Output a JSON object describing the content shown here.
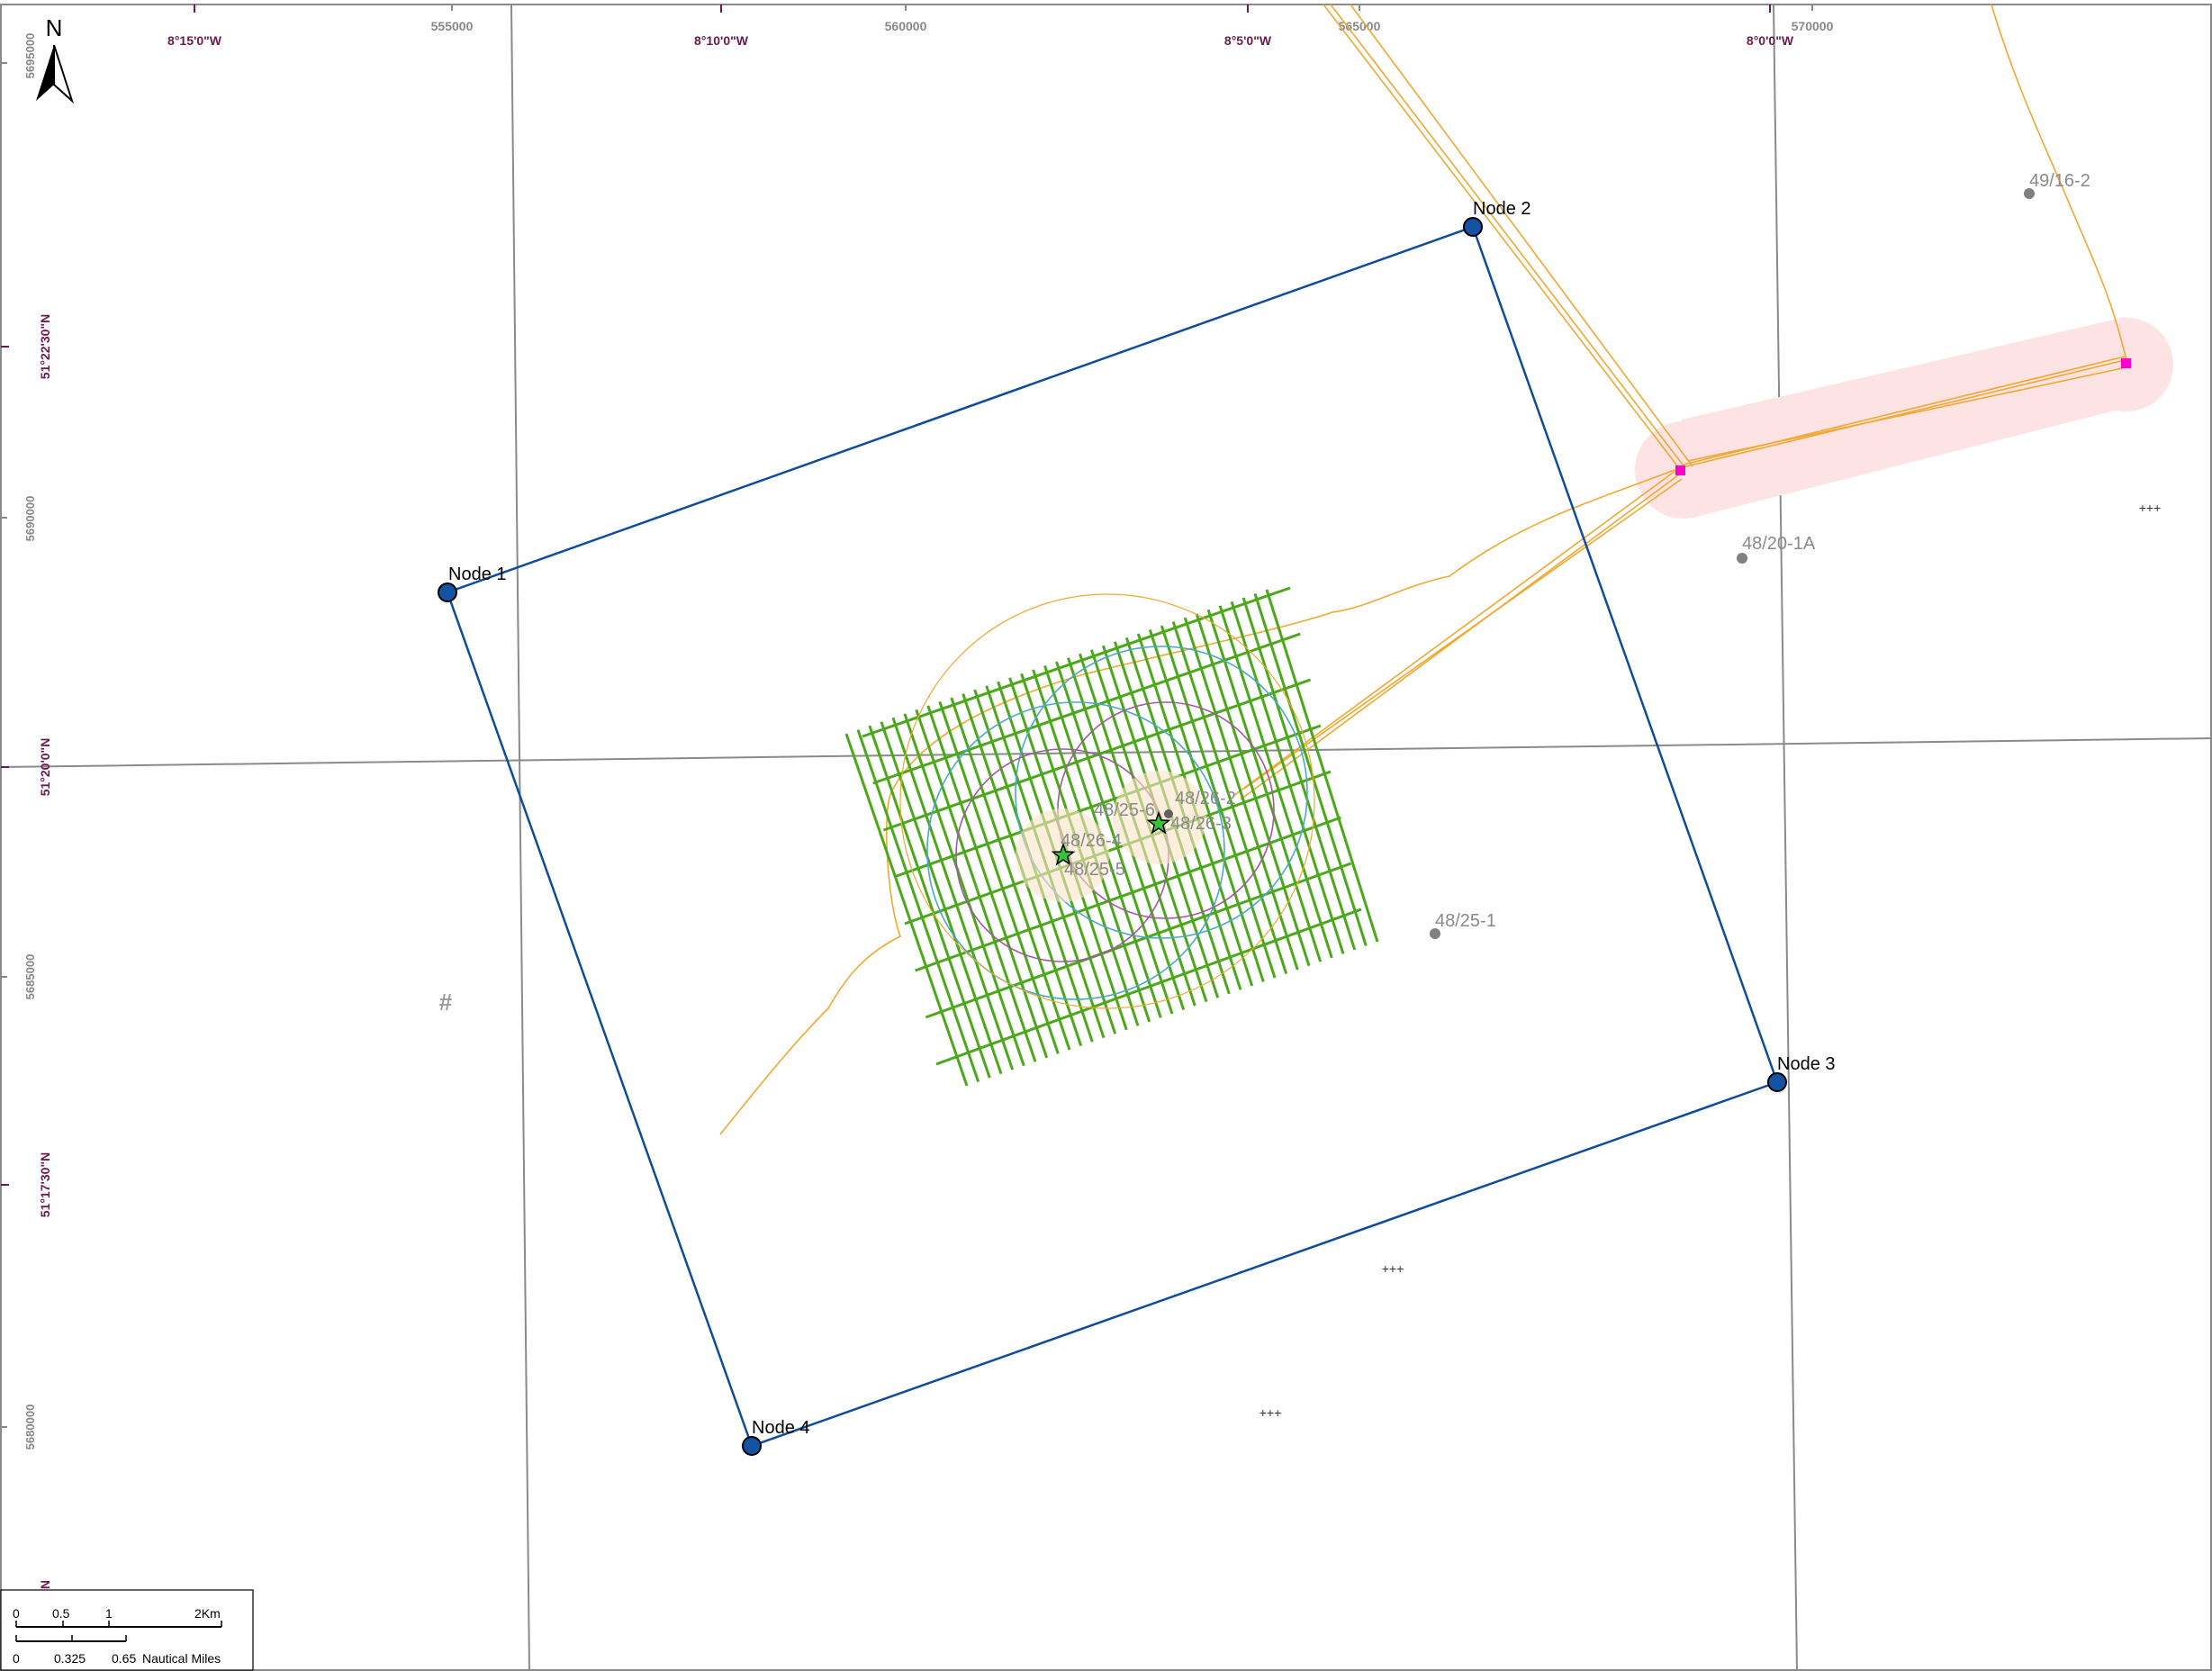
{
  "north_arrow": {
    "label": "N"
  },
  "grid": {
    "easting_labels": [
      "555000",
      "560000",
      "565000",
      "570000"
    ],
    "northing_labels": [
      "5695000",
      "5690000",
      "5685000",
      "5680000"
    ],
    "longitude_labels": [
      "8°15'0\"W",
      "8°10'0\"W",
      "8°5'0\"W",
      "8°0'0\"W"
    ],
    "latitude_labels": [
      "51°22'30\"N",
      "51°20'0\"N",
      "51°17'30\"N",
      "N"
    ]
  },
  "nodes": [
    {
      "label": "Node 1"
    },
    {
      "label": "Node 2"
    },
    {
      "label": "Node 3"
    },
    {
      "label": "Node 4"
    }
  ],
  "wells": [
    {
      "label": "49/16-2"
    },
    {
      "label": "48/20-1A"
    },
    {
      "label": "48/25-1"
    },
    {
      "label": "48/26-2"
    },
    {
      "label": "48/26-3"
    },
    {
      "label": "48/25-6"
    },
    {
      "label": "48/26-4"
    },
    {
      "label": "48/25-5"
    }
  ],
  "symbols": {
    "hash": "#",
    "wreck_marker": "+++"
  },
  "scale_bar": {
    "km_labels": [
      "0",
      "0.5",
      "1",
      "2Km"
    ],
    "nm_labels": [
      "0",
      "0.325",
      "0.65"
    ],
    "nm_unit": "Nautical Miles"
  },
  "colors": {
    "survey_boundary": "#0f4c9e",
    "node_fill": "#1452a3",
    "survey_lines": "#4aa81a",
    "pipeline": "#f0a830",
    "buffer_zone": "#fde3e3",
    "grid_lines": "#8a8a8a",
    "circle_cyan": "#4aa8c8",
    "circle_purple": "#a05aa0",
    "platform": "#ff00cc"
  }
}
